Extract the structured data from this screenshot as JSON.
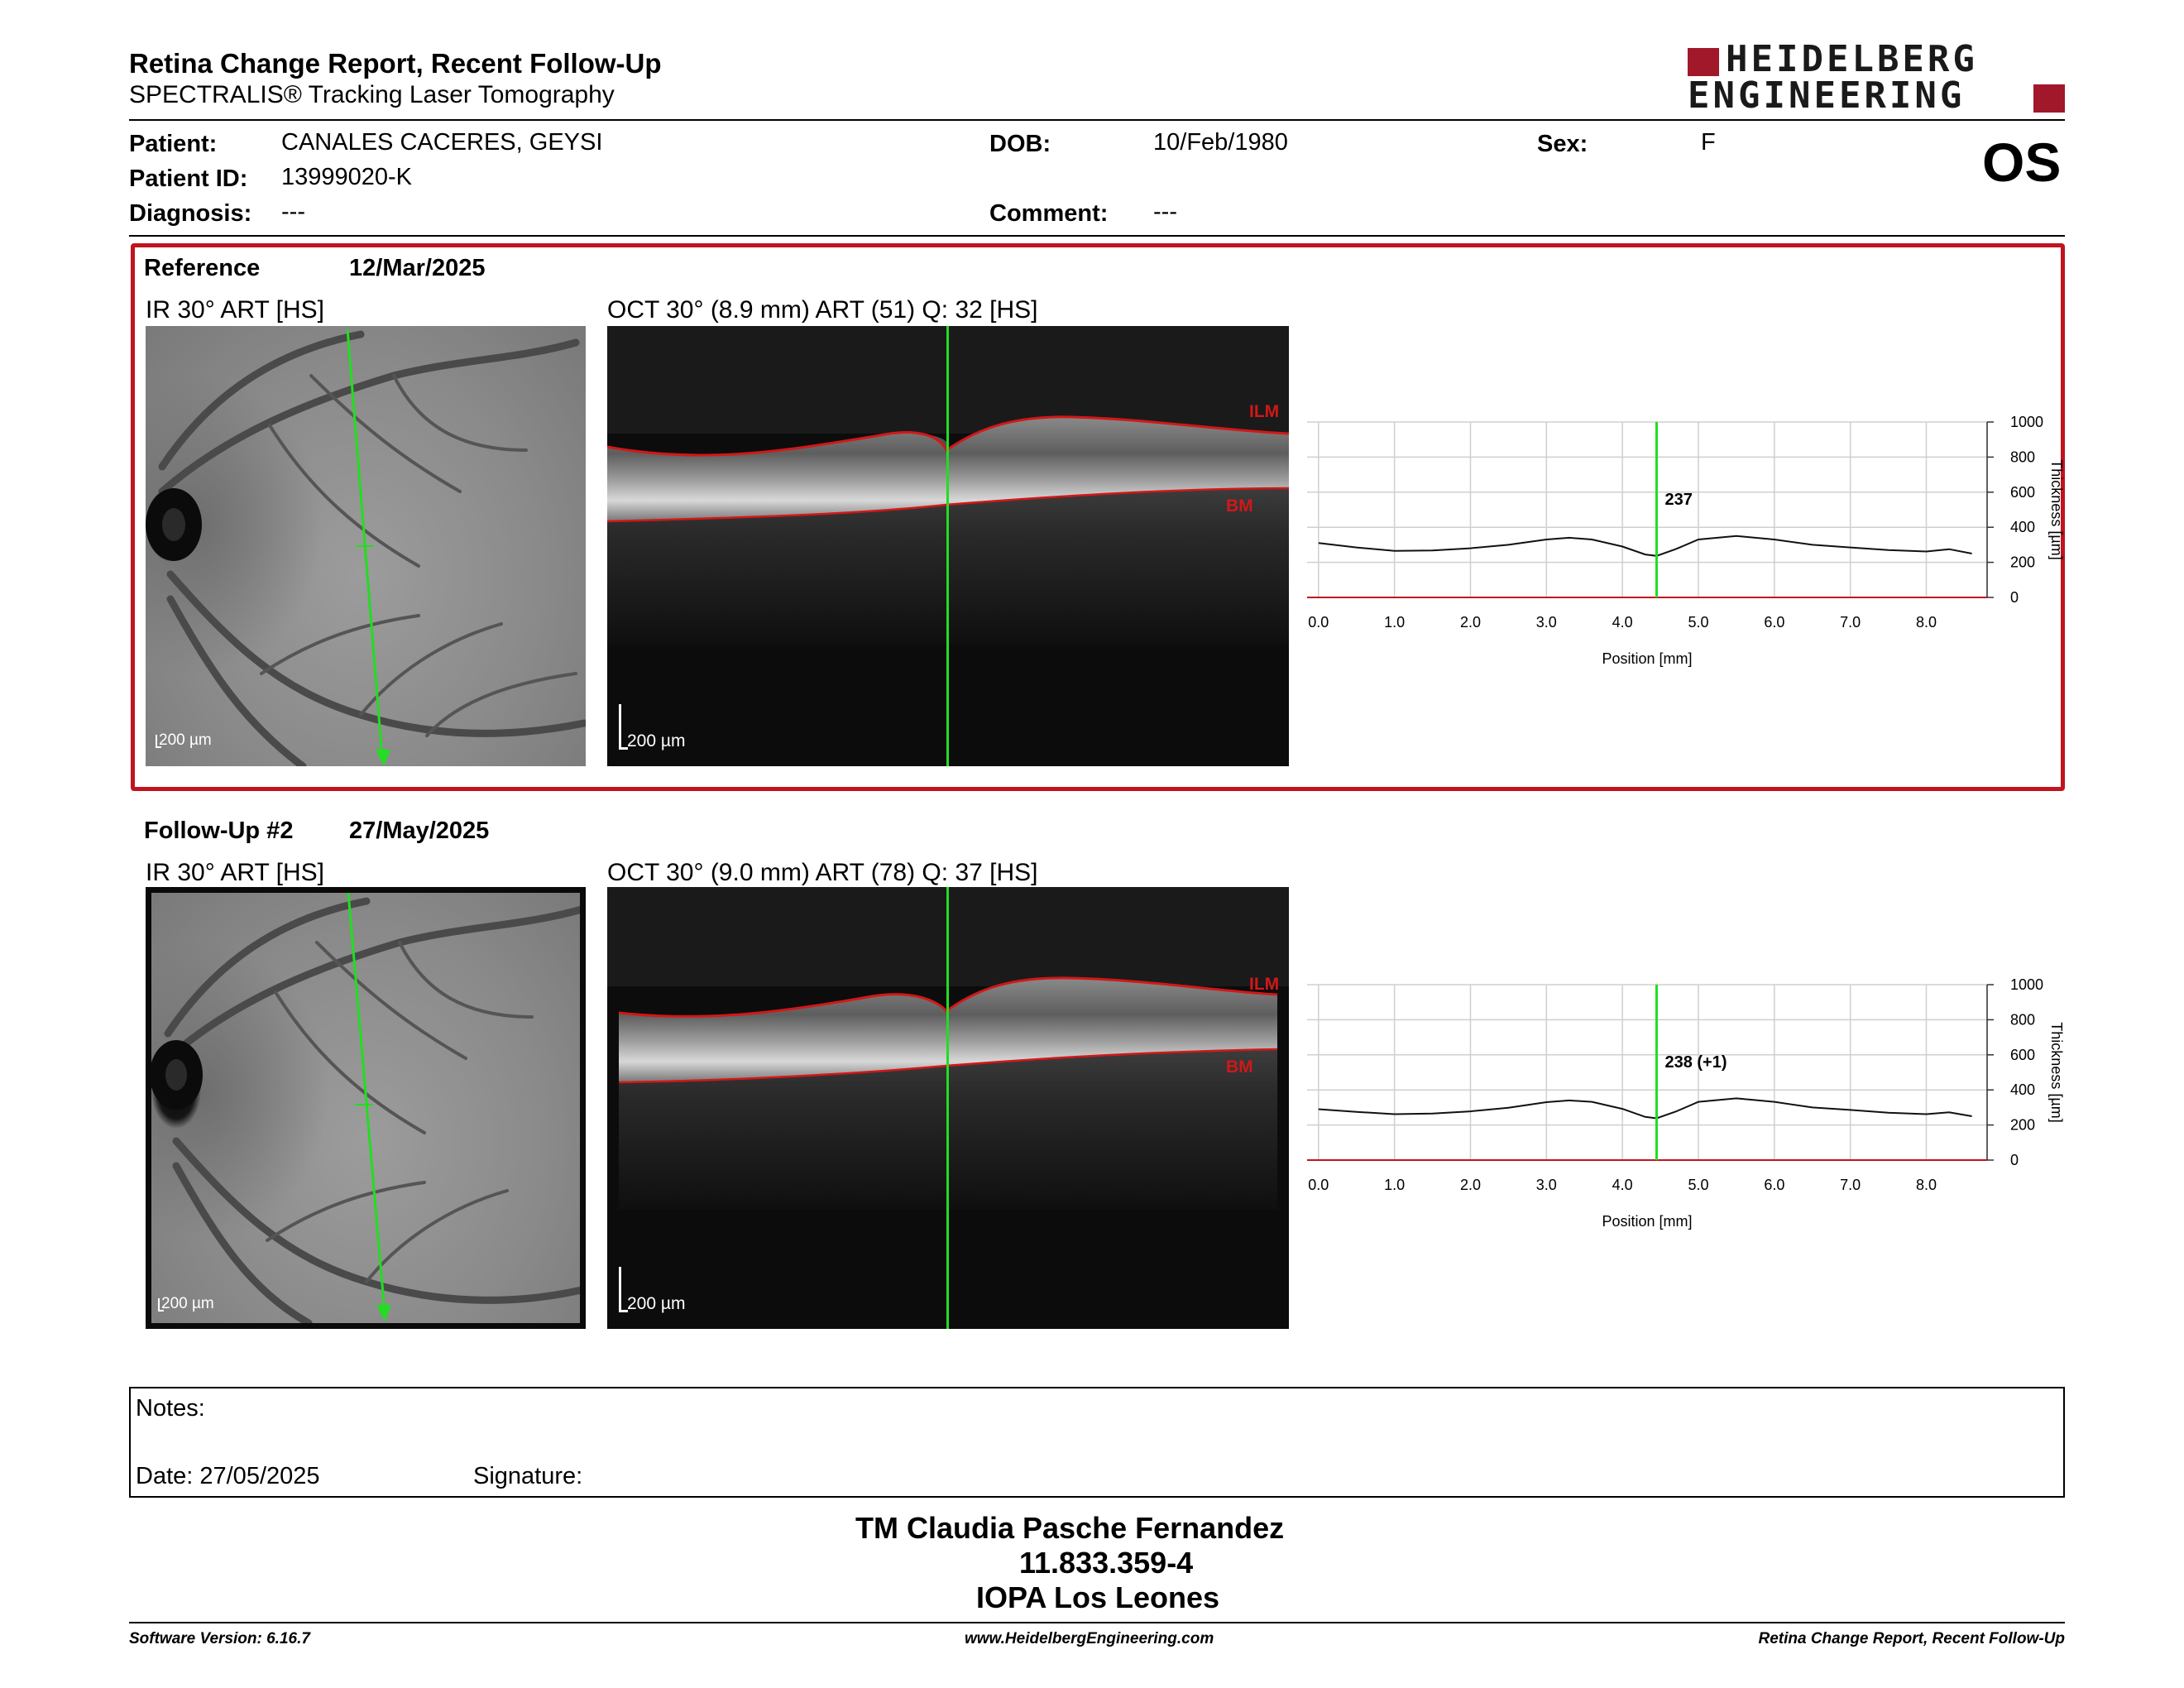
{
  "header": {
    "title": "Retina Change Report, Recent Follow-Up",
    "subtitle": "SPECTRALIS® Tracking Laser Tomography",
    "logo_line1": "HEIDELBERG",
    "logo_line2": "ENGINEERING",
    "brand_color": "#a0182a"
  },
  "patient": {
    "name_label": "Patient:",
    "name": "CANALES CACERES, GEYSI",
    "id_label": "Patient ID:",
    "id": "13999020-K",
    "diagnosis_label": "Diagnosis:",
    "diagnosis": "---",
    "dob_label": "DOB:",
    "dob": "10/Feb/1980",
    "comment_label": "Comment:",
    "comment": "---",
    "sex_label": "Sex:",
    "sex": "F",
    "eye": "OS"
  },
  "reference": {
    "label": "Reference",
    "date": "12/Mar/2025",
    "ir_label": "IR 30° ART [HS]",
    "oct_label": "OCT 30° (8.9 mm) ART (51) Q: 32 [HS]",
    "scale": "200 µm",
    "ilm": "ILM",
    "bm": "BM",
    "highlight_color": "#c0141f"
  },
  "followup": {
    "label": "Follow-Up #2",
    "date": "27/May/2025",
    "ir_label": "IR 30° ART [HS]",
    "oct_label": "OCT 30° (9.0 mm) ART (78) Q: 37 [HS]",
    "scale": "200 µm",
    "ilm": "ILM",
    "bm": "BM"
  },
  "chart_data": [
    {
      "type": "line",
      "x_ticks": [
        "0.0",
        "1.0",
        "2.0",
        "3.0",
        "4.0",
        "5.0",
        "6.0",
        "7.0",
        "8.0"
      ],
      "y_ticks": [
        "0",
        "200",
        "400",
        "600",
        "800",
        "1000"
      ],
      "xlabel": "Position [mm]",
      "ylabel": "Thickness [µm]",
      "xlim": [
        -0.15,
        8.8
      ],
      "ylim": [
        0,
        1000
      ],
      "cursor_x": 4.45,
      "cursor_label": "237",
      "grid": true,
      "x": [
        0,
        0.5,
        1.0,
        1.5,
        2.0,
        2.5,
        3.0,
        3.3,
        3.6,
        4.0,
        4.3,
        4.45,
        4.7,
        5.0,
        5.5,
        6.0,
        6.5,
        7.0,
        7.5,
        8.0,
        8.3,
        8.6
      ],
      "values": [
        310,
        285,
        265,
        268,
        280,
        300,
        330,
        340,
        330,
        290,
        245,
        237,
        275,
        330,
        350,
        330,
        300,
        285,
        270,
        262,
        275,
        250
      ]
    },
    {
      "type": "line",
      "x_ticks": [
        "0.0",
        "1.0",
        "2.0",
        "3.0",
        "4.0",
        "5.0",
        "6.0",
        "7.0",
        "8.0"
      ],
      "y_ticks": [
        "0",
        "200",
        "400",
        "600",
        "800",
        "1000"
      ],
      "xlabel": "Position [mm]",
      "ylabel": "Thickness [µm]",
      "xlim": [
        -0.15,
        8.8
      ],
      "ylim": [
        0,
        1000
      ],
      "cursor_x": 4.45,
      "cursor_label": "238 (+1)",
      "grid": true,
      "x": [
        0,
        0.5,
        1.0,
        1.5,
        2.0,
        2.5,
        3.0,
        3.3,
        3.6,
        4.0,
        4.3,
        4.45,
        4.7,
        5.0,
        5.5,
        6.0,
        6.5,
        7.0,
        7.5,
        8.0,
        8.3,
        8.6
      ],
      "values": [
        290,
        275,
        262,
        265,
        278,
        298,
        330,
        340,
        332,
        292,
        246,
        238,
        276,
        332,
        352,
        332,
        300,
        286,
        270,
        262,
        272,
        250
      ]
    }
  ],
  "notes": {
    "label": "Notes:",
    "date_label": "Date: 27/05/2025",
    "signature_label": "Signature:"
  },
  "signature": {
    "line1": "TM Claudia Pasche Fernandez",
    "line2": "11.833.359-4",
    "line3": "IOPA Los Leones"
  },
  "footer": {
    "left": "Software Version: 6.16.7",
    "center": "www.HeidelbergEngineering.com",
    "right": "Retina Change Report, Recent Follow-Up"
  },
  "colors": {
    "scan_line": "#22dd22",
    "layer": "#d11818",
    "cursor": "#22dd22"
  }
}
